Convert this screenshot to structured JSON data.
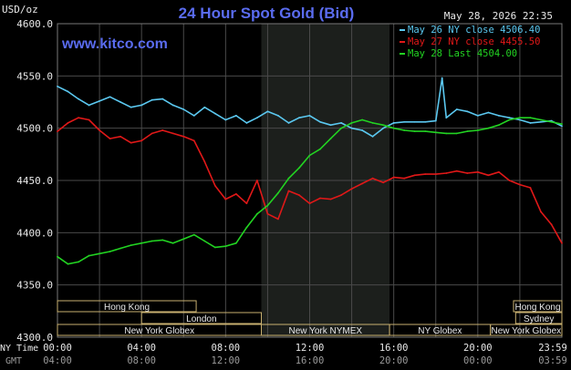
{
  "header": {
    "title": "24 Hour Spot Gold (Bid)",
    "unit": "USD/oz",
    "timestamp": "May 28, 2026 22:35",
    "watermark": "www.kitco.com"
  },
  "legend": [
    {
      "label": "May 26 NY close 4506.40",
      "color": "#5bc8f0"
    },
    {
      "label": "May 27 NY close 4455.50",
      "color": "#e01818"
    },
    {
      "label": "May 28 Last 4504.00",
      "color": "#22d322"
    }
  ],
  "axis": {
    "x_row1_label": "NY Time",
    "x_row2_label": "GMT",
    "x_ticks_ny": [
      "00:00",
      "04:00",
      "08:00",
      "12:00",
      "16:00",
      "20:00",
      "23:59"
    ],
    "x_ticks_gmt": [
      "04:00",
      "08:00",
      "12:00",
      "16:00",
      "20:00",
      "00:00",
      "03:59"
    ],
    "y_ticks": [
      "4600.0",
      "4550.0",
      "4500.0",
      "4450.0",
      "4400.0",
      "4350.0",
      "4300.0"
    ]
  },
  "sessions": [
    {
      "label": "Hong Kong",
      "row": 0,
      "start_h": 0,
      "end_h": 6.6
    },
    {
      "label": "Hong Kong",
      "row": 0,
      "start_h": 21.7,
      "end_h": 24
    },
    {
      "label": "London",
      "row": 1,
      "start_h": 4,
      "end_h": 9.7
    },
    {
      "label": "Sydney",
      "row": 1,
      "start_h": 21.8,
      "end_h": 24
    },
    {
      "label": "New York Globex",
      "row": 2,
      "start_h": 0,
      "end_h": 9.7
    },
    {
      "label": "New York NYMEX",
      "row": 2,
      "start_h": 9.7,
      "end_h": 15.8
    },
    {
      "label": "NY Globex",
      "row": 2,
      "start_h": 15.8,
      "end_h": 20.6
    },
    {
      "label": "New York Globex",
      "row": 2,
      "start_h": 20.6,
      "end_h": 24
    }
  ],
  "colors": {
    "background": "#000000",
    "plot_area": "#000000",
    "nymex_shade": "#1c1f1c",
    "grid": "#4a4a4a",
    "title": "#5a6cf0",
    "watermark": "#5a6cf0",
    "text": "#e8e8e8",
    "session_border": "#c8b070"
  },
  "chart_data": {
    "type": "line",
    "title": "24 Hour Spot Gold (Bid)",
    "xlabel": "NY Time",
    "ylabel": "USD/oz",
    "xlim": [
      0,
      24
    ],
    "ylim": [
      4300,
      4600
    ],
    "grid": true,
    "legend_position": "top-right",
    "series": [
      {
        "name": "May 26 NY close 4506.40",
        "color": "#5bc8f0",
        "x": [
          0,
          0.5,
          1,
          1.5,
          2,
          2.5,
          3,
          3.5,
          4,
          4.5,
          5,
          5.5,
          6,
          6.5,
          7,
          7.5,
          8,
          8.5,
          9,
          9.5,
          10,
          10.5,
          11,
          11.5,
          12,
          12.5,
          13,
          13.5,
          14,
          14.5,
          15,
          15.5,
          16,
          16.5,
          17,
          17.5,
          18,
          18.3,
          18.5,
          19,
          19.5,
          20,
          20.5,
          21,
          21.5,
          22,
          22.5,
          23,
          23.5,
          24
        ],
        "y": [
          4540,
          4535,
          4528,
          4522,
          4526,
          4530,
          4525,
          4520,
          4522,
          4527,
          4528,
          4522,
          4518,
          4512,
          4520,
          4514,
          4508,
          4512,
          4505,
          4510,
          4516,
          4512,
          4505,
          4510,
          4512,
          4506,
          4503,
          4505,
          4500,
          4498,
          4492,
          4500,
          4505,
          4506,
          4506,
          4506,
          4507,
          4548,
          4510,
          4518,
          4516,
          4512,
          4515,
          4512,
          4510,
          4508,
          4505,
          4506,
          4507,
          4502
        ]
      },
      {
        "name": "May 27 NY close 4455.50",
        "color": "#e01818",
        "x": [
          0,
          0.5,
          1,
          1.5,
          2,
          2.5,
          3,
          3.5,
          4,
          4.5,
          5,
          5.5,
          6,
          6.5,
          7,
          7.5,
          8,
          8.5,
          9,
          9.5,
          10,
          10.5,
          11,
          11.5,
          12,
          12.5,
          13,
          13.5,
          14,
          14.5,
          15,
          15.5,
          16,
          16.5,
          17,
          17.5,
          18,
          18.5,
          19,
          19.5,
          20,
          20.5,
          21,
          21.5,
          22,
          22.5,
          23,
          23.5,
          24
        ],
        "y": [
          4497,
          4505,
          4510,
          4508,
          4498,
          4490,
          4492,
          4486,
          4488,
          4495,
          4498,
          4495,
          4492,
          4488,
          4468,
          4445,
          4432,
          4437,
          4428,
          4450,
          4418,
          4413,
          4440,
          4436,
          4428,
          4433,
          4432,
          4436,
          4442,
          4447,
          4452,
          4448,
          4453,
          4452,
          4455,
          4456,
          4456,
          4457,
          4459,
          4457,
          4458,
          4455,
          4458,
          4450,
          4446,
          4443,
          4420,
          4408,
          4390
        ]
      },
      {
        "name": "May 28 Last 4504.00",
        "color": "#22d322",
        "x": [
          0,
          0.5,
          1,
          1.5,
          2,
          2.5,
          3,
          3.5,
          4,
          4.5,
          5,
          5.5,
          6,
          6.5,
          7,
          7.5,
          8,
          8.5,
          9,
          9.5,
          10,
          10.5,
          11,
          11.5,
          12,
          12.5,
          13,
          13.5,
          14,
          14.5,
          15,
          15.5,
          16,
          16.5,
          17,
          17.5,
          18,
          18.5,
          19,
          19.5,
          20,
          20.5,
          21,
          21.5,
          22,
          22.5,
          23,
          23.5,
          24
        ],
        "y": [
          4377,
          4370,
          4372,
          4378,
          4380,
          4382,
          4385,
          4388,
          4390,
          4392,
          4393,
          4390,
          4394,
          4398,
          4392,
          4386,
          4387,
          4390,
          4405,
          4418,
          4426,
          4438,
          4452,
          4462,
          4474,
          4480,
          4490,
          4500,
          4505,
          4508,
          4505,
          4503,
          4500,
          4498,
          4497,
          4497,
          4496,
          4495,
          4495,
          4497,
          4498,
          4500,
          4503,
          4508,
          4510,
          4510,
          4508,
          4506,
          4504
        ]
      }
    ]
  }
}
